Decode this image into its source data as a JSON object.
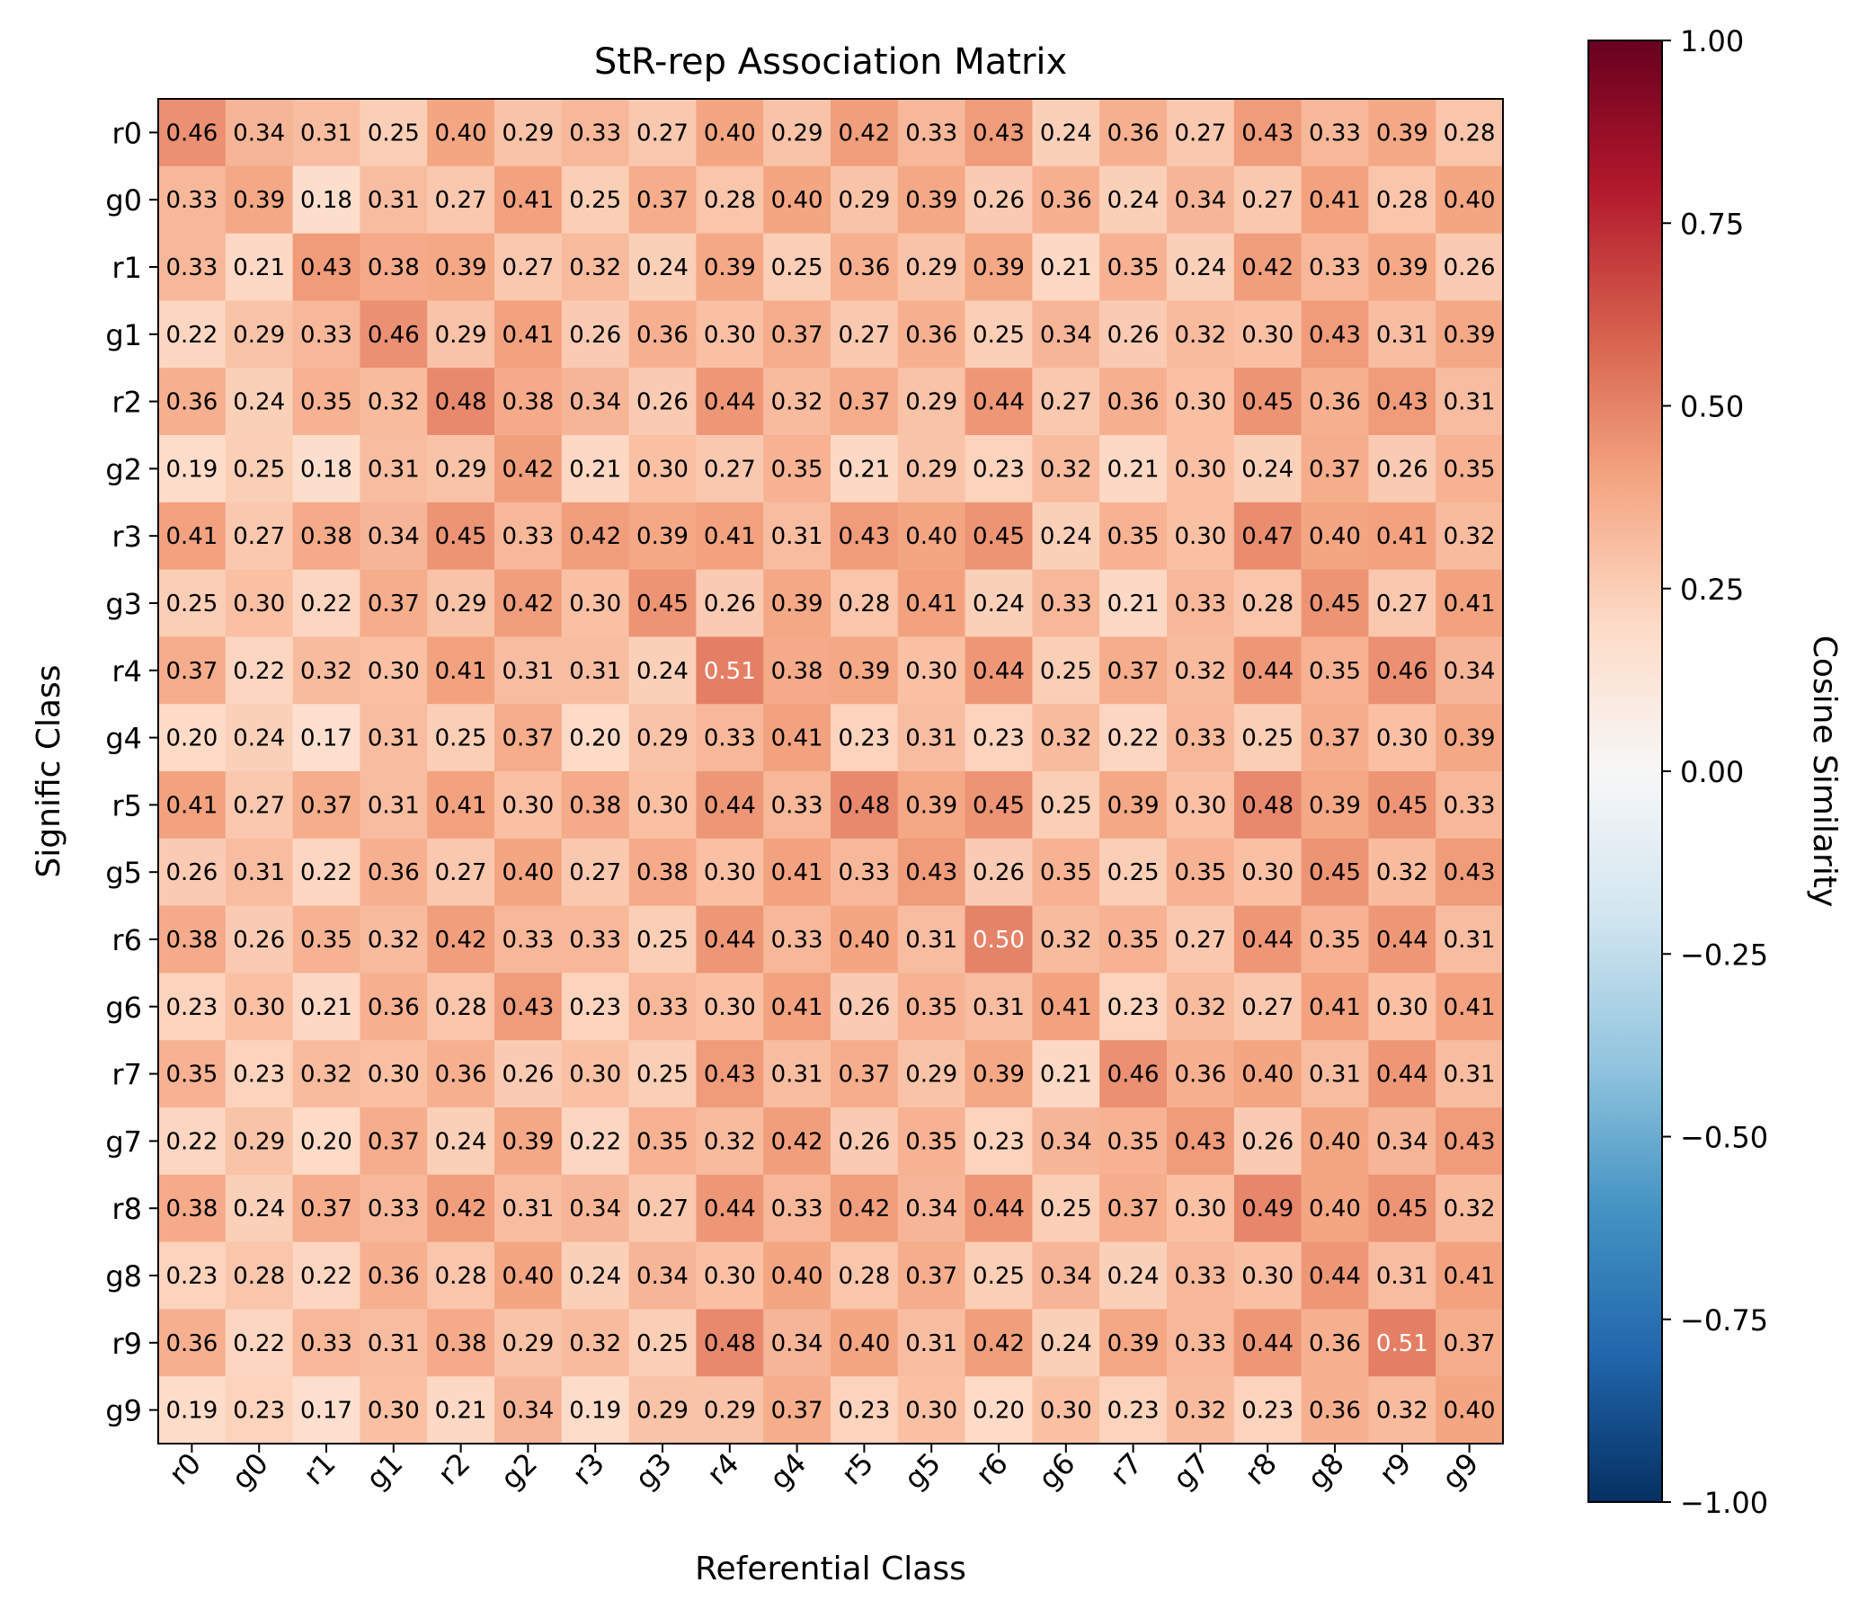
{
  "chart_data": {
    "type": "heatmap",
    "title": "StR-rep Association Matrix",
    "xlabel": "Referential Class",
    "ylabel": "Signific Class",
    "x_categories": [
      "r0",
      "g0",
      "r1",
      "g1",
      "r2",
      "g2",
      "r3",
      "g3",
      "r4",
      "g4",
      "r5",
      "g5",
      "r6",
      "g6",
      "r7",
      "g7",
      "r8",
      "g8",
      "r9",
      "g9"
    ],
    "y_categories": [
      "r0",
      "g0",
      "r1",
      "g1",
      "r2",
      "g2",
      "r3",
      "g3",
      "r4",
      "g4",
      "r5",
      "g5",
      "r6",
      "g6",
      "r7",
      "g7",
      "r8",
      "g8",
      "r9",
      "g9"
    ],
    "values": [
      [
        0.46,
        0.34,
        0.31,
        0.25,
        0.4,
        0.29,
        0.33,
        0.27,
        0.4,
        0.29,
        0.42,
        0.33,
        0.43,
        0.24,
        0.36,
        0.27,
        0.43,
        0.33,
        0.39,
        0.28
      ],
      [
        0.33,
        0.39,
        0.18,
        0.31,
        0.27,
        0.41,
        0.25,
        0.37,
        0.28,
        0.4,
        0.29,
        0.39,
        0.26,
        0.36,
        0.24,
        0.34,
        0.27,
        0.41,
        0.28,
        0.4
      ],
      [
        0.33,
        0.21,
        0.43,
        0.38,
        0.39,
        0.27,
        0.32,
        0.24,
        0.39,
        0.25,
        0.36,
        0.29,
        0.39,
        0.21,
        0.35,
        0.24,
        0.42,
        0.33,
        0.39,
        0.26
      ],
      [
        0.22,
        0.29,
        0.33,
        0.46,
        0.29,
        0.41,
        0.26,
        0.36,
        0.3,
        0.37,
        0.27,
        0.36,
        0.25,
        0.34,
        0.26,
        0.32,
        0.3,
        0.43,
        0.31,
        0.39
      ],
      [
        0.36,
        0.24,
        0.35,
        0.32,
        0.48,
        0.38,
        0.34,
        0.26,
        0.44,
        0.32,
        0.37,
        0.29,
        0.44,
        0.27,
        0.36,
        0.3,
        0.45,
        0.36,
        0.43,
        0.31
      ],
      [
        0.19,
        0.25,
        0.18,
        0.31,
        0.29,
        0.42,
        0.21,
        0.3,
        0.27,
        0.35,
        0.21,
        0.29,
        0.23,
        0.32,
        0.21,
        0.3,
        0.24,
        0.37,
        0.26,
        0.35
      ],
      [
        0.41,
        0.27,
        0.38,
        0.34,
        0.45,
        0.33,
        0.42,
        0.39,
        0.41,
        0.31,
        0.43,
        0.4,
        0.45,
        0.24,
        0.35,
        0.3,
        0.47,
        0.4,
        0.41,
        0.32
      ],
      [
        0.25,
        0.3,
        0.22,
        0.37,
        0.29,
        0.42,
        0.3,
        0.45,
        0.26,
        0.39,
        0.28,
        0.41,
        0.24,
        0.33,
        0.21,
        0.33,
        0.28,
        0.45,
        0.27,
        0.41
      ],
      [
        0.37,
        0.22,
        0.32,
        0.3,
        0.41,
        0.31,
        0.31,
        0.24,
        0.51,
        0.38,
        0.39,
        0.3,
        0.44,
        0.25,
        0.37,
        0.32,
        0.44,
        0.35,
        0.46,
        0.34
      ],
      [
        0.2,
        0.24,
        0.17,
        0.31,
        0.25,
        0.37,
        0.2,
        0.29,
        0.33,
        0.41,
        0.23,
        0.31,
        0.23,
        0.32,
        0.22,
        0.33,
        0.25,
        0.37,
        0.3,
        0.39
      ],
      [
        0.41,
        0.27,
        0.37,
        0.31,
        0.41,
        0.3,
        0.38,
        0.3,
        0.44,
        0.33,
        0.48,
        0.39,
        0.45,
        0.25,
        0.39,
        0.3,
        0.48,
        0.39,
        0.45,
        0.33
      ],
      [
        0.26,
        0.31,
        0.22,
        0.36,
        0.27,
        0.4,
        0.27,
        0.38,
        0.3,
        0.41,
        0.33,
        0.43,
        0.26,
        0.35,
        0.25,
        0.35,
        0.3,
        0.45,
        0.32,
        0.43
      ],
      [
        0.38,
        0.26,
        0.35,
        0.32,
        0.42,
        0.33,
        0.33,
        0.25,
        0.44,
        0.33,
        0.4,
        0.31,
        0.5,
        0.32,
        0.35,
        0.27,
        0.44,
        0.35,
        0.44,
        0.31
      ],
      [
        0.23,
        0.3,
        0.21,
        0.36,
        0.28,
        0.43,
        0.23,
        0.33,
        0.3,
        0.41,
        0.26,
        0.35,
        0.31,
        0.41,
        0.23,
        0.32,
        0.27,
        0.41,
        0.3,
        0.41
      ],
      [
        0.35,
        0.23,
        0.32,
        0.3,
        0.36,
        0.26,
        0.3,
        0.25,
        0.43,
        0.31,
        0.37,
        0.29,
        0.39,
        0.21,
        0.46,
        0.36,
        0.4,
        0.31,
        0.44,
        0.31
      ],
      [
        0.22,
        0.29,
        0.2,
        0.37,
        0.24,
        0.39,
        0.22,
        0.35,
        0.32,
        0.42,
        0.26,
        0.35,
        0.23,
        0.34,
        0.35,
        0.43,
        0.26,
        0.4,
        0.34,
        0.43
      ],
      [
        0.38,
        0.24,
        0.37,
        0.33,
        0.42,
        0.31,
        0.34,
        0.27,
        0.44,
        0.33,
        0.42,
        0.34,
        0.44,
        0.25,
        0.37,
        0.3,
        0.49,
        0.4,
        0.45,
        0.32
      ],
      [
        0.23,
        0.28,
        0.22,
        0.36,
        0.28,
        0.4,
        0.24,
        0.34,
        0.3,
        0.4,
        0.28,
        0.37,
        0.25,
        0.34,
        0.24,
        0.33,
        0.3,
        0.44,
        0.31,
        0.41
      ],
      [
        0.36,
        0.22,
        0.33,
        0.31,
        0.38,
        0.29,
        0.32,
        0.25,
        0.48,
        0.34,
        0.4,
        0.31,
        0.42,
        0.24,
        0.39,
        0.33,
        0.44,
        0.36,
        0.51,
        0.37
      ],
      [
        0.19,
        0.23,
        0.17,
        0.3,
        0.21,
        0.34,
        0.19,
        0.29,
        0.29,
        0.37,
        0.23,
        0.3,
        0.2,
        0.3,
        0.23,
        0.32,
        0.23,
        0.36,
        0.32,
        0.4
      ]
    ],
    "colorbar": {
      "label": "Cosine Similarity",
      "range": [
        -1.0,
        1.0
      ],
      "ticks": [
        "1.00",
        "0.75",
        "0.50",
        "0.25",
        "0.00",
        "−0.25",
        "−0.50",
        "−0.75",
        "−1.00"
      ],
      "tick_values": [
        1.0,
        0.75,
        0.5,
        0.25,
        0.0,
        -0.25,
        -0.5,
        -0.75,
        -1.0
      ],
      "colormap": "RdBu_r"
    },
    "white_text_threshold": 0.5
  }
}
